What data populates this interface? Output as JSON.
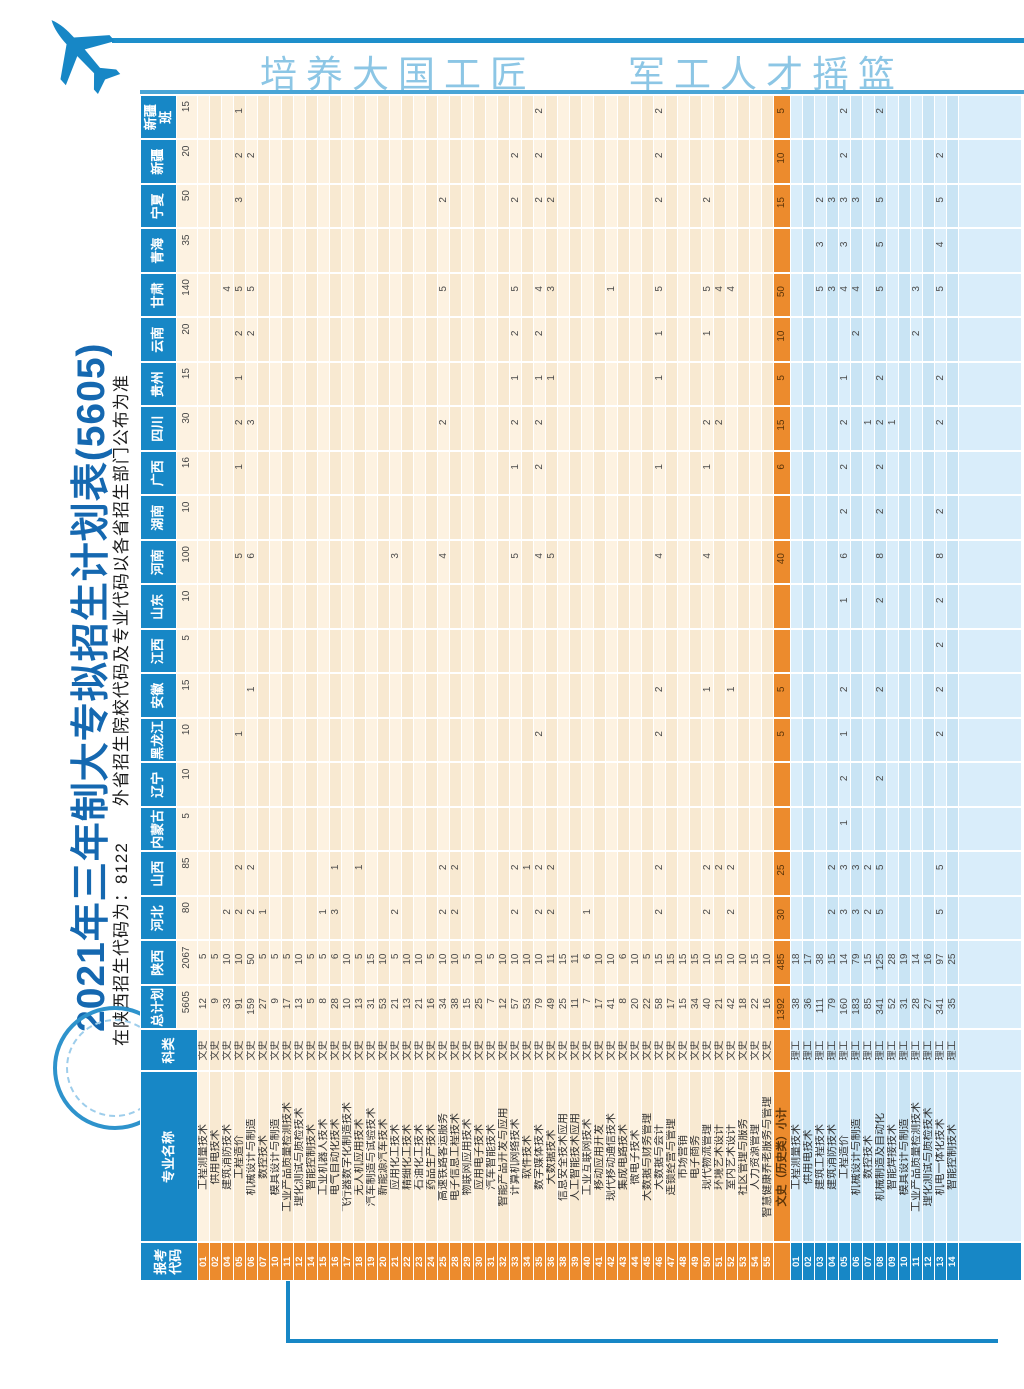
{
  "banner": {
    "slogan": "培养大国工匠　　军工人才摇篮"
  },
  "title": {
    "main": "2021年三年制大专拟招生计划表(5605)",
    "subtitle": "在陕西招生代码为：8122　　外省招生院校代码及专业代码以各省招生部门公布为准"
  },
  "icons": {
    "plane": "plane-logo",
    "seal": "school-seal"
  },
  "table": {
    "first_headers": [
      "报考\n代码",
      "专业名称",
      "科类"
    ],
    "province_headers": [
      "总计划",
      "陕西",
      "河北",
      "山西",
      "内蒙古",
      "辽宁",
      "黑龙江",
      "安徽",
      "江西",
      "山东",
      "河南",
      "湖南",
      "广西",
      "四川",
      "贵州",
      "云南",
      "甘肃",
      "青海",
      "宁夏",
      "新疆",
      "新疆\n班"
    ],
    "province_totals": [
      "5605",
      "2067",
      "80",
      "85",
      "5",
      "10",
      "10",
      "15",
      "5",
      "10",
      "100",
      "10",
      "16",
      "30",
      "15",
      "20",
      "140",
      "35",
      "50",
      "20",
      "15"
    ],
    "rows": [
      {
        "sec": "w",
        "code": "01",
        "name": "工程测量技术",
        "cat": "文史",
        "v": {
          "0": 12,
          "1": 5
        }
      },
      {
        "sec": "w",
        "code": "02",
        "name": "供用电技术",
        "cat": "文史",
        "v": {
          "0": 9,
          "1": 5
        }
      },
      {
        "sec": "w",
        "code": "04",
        "name": "建筑消防技术",
        "cat": "文史",
        "v": {
          "0": 33,
          "1": 10,
          "2": 2,
          "16": 4
        }
      },
      {
        "sec": "w",
        "code": "05",
        "name": "工程造价",
        "cat": "文史",
        "v": {
          "0": 91,
          "1": 10,
          "2": 2,
          "3": 2,
          "6": 1,
          "10": 5,
          "12": 1,
          "13": 2,
          "14": 1,
          "15": 2,
          "16": 5,
          "18": 3,
          "19": 2,
          "20": 1
        }
      },
      {
        "sec": "w",
        "code": "06",
        "name": "机械设计与制造",
        "cat": "文史",
        "v": {
          "0": 159,
          "1": 50,
          "2": 2,
          "3": 2,
          "7": 1,
          "10": 6,
          "13": 3,
          "15": 2,
          "16": 5,
          "19": 2
        }
      },
      {
        "sec": "w",
        "code": "07",
        "name": "数控技术",
        "cat": "文史",
        "v": {
          "0": 27,
          "1": 5,
          "2": 1
        }
      },
      {
        "sec": "w",
        "code": "10",
        "name": "模具设计与制造",
        "cat": "文史",
        "v": {
          "0": 9,
          "1": 5
        }
      },
      {
        "sec": "w",
        "code": "11",
        "name": "工业产品质量检测技术",
        "cat": "文史",
        "v": {
          "0": 17,
          "1": 5
        }
      },
      {
        "sec": "w",
        "code": "12",
        "name": "理化测试与质检技术",
        "cat": "文史",
        "v": {
          "0": 13,
          "1": 10
        }
      },
      {
        "sec": "w",
        "code": "14",
        "name": "智能控制技术",
        "cat": "文史",
        "v": {
          "0": 5,
          "1": 5
        }
      },
      {
        "sec": "w",
        "code": "15",
        "name": "工业机器人技术",
        "cat": "文史",
        "v": {
          "0": 8,
          "1": 5,
          "2": 1
        }
      },
      {
        "sec": "w",
        "code": "16",
        "name": "电气自动化技术",
        "cat": "文史",
        "v": {
          "0": 28,
          "1": 6,
          "2": 3,
          "3": 1
        }
      },
      {
        "sec": "w",
        "code": "17",
        "name": "飞行器数字化制造技术",
        "cat": "文史",
        "v": {
          "0": 10,
          "1": 10
        }
      },
      {
        "sec": "w",
        "code": "18",
        "name": "无人机应用技术",
        "cat": "文史",
        "v": {
          "0": 13,
          "1": 5,
          "3": 1
        }
      },
      {
        "sec": "w",
        "code": "19",
        "name": "汽车制造与试验技术",
        "cat": "文史",
        "v": {
          "0": 31,
          "1": 15
        }
      },
      {
        "sec": "w",
        "code": "20",
        "name": "新能源汽车技术",
        "cat": "文史",
        "v": {
          "0": 53,
          "1": 10
        }
      },
      {
        "sec": "w",
        "code": "21",
        "name": "应用化工技术",
        "cat": "文史",
        "v": {
          "0": 21,
          "1": 5,
          "2": 2,
          "10": 3
        }
      },
      {
        "sec": "w",
        "code": "22",
        "name": "精细化工技术",
        "cat": "文史",
        "v": {
          "0": 13,
          "1": 10
        }
      },
      {
        "sec": "w",
        "code": "23",
        "name": "石油化工技术",
        "cat": "文史",
        "v": {
          "0": 21,
          "1": 10
        }
      },
      {
        "sec": "w",
        "code": "24",
        "name": "药品生产技术",
        "cat": "文史",
        "v": {
          "0": 16,
          "1": 5
        }
      },
      {
        "sec": "w",
        "code": "25",
        "name": "高速铁路客运服务",
        "cat": "文史",
        "v": {
          "0": 34,
          "1": 10,
          "2": 2,
          "3": 2,
          "10": 4,
          "13": 2,
          "16": 5,
          "18": 2
        }
      },
      {
        "sec": "w",
        "code": "28",
        "name": "电子信息工程技术",
        "cat": "文史",
        "v": {
          "0": 38,
          "1": 10,
          "2": 2,
          "3": 2
        }
      },
      {
        "sec": "w",
        "code": "29",
        "name": "物联网应用技术",
        "cat": "文史",
        "v": {
          "0": 15,
          "1": 5
        }
      },
      {
        "sec": "w",
        "code": "30",
        "name": "应用电子技术",
        "cat": "文史",
        "v": {
          "0": 25,
          "1": 10
        }
      },
      {
        "sec": "w",
        "code": "31",
        "name": "汽车智能技术",
        "cat": "文史",
        "v": {
          "0": 7,
          "1": 5
        }
      },
      {
        "sec": "w",
        "code": "32",
        "name": "智能产品开发与应用",
        "cat": "文史",
        "v": {
          "0": 12,
          "1": 10
        }
      },
      {
        "sec": "w",
        "code": "33",
        "name": "计算机网络技术",
        "cat": "文史",
        "v": {
          "0": 57,
          "1": 10,
          "2": 2,
          "3": 2,
          "10": 5,
          "12": 1,
          "13": 2,
          "14": 1,
          "15": 2,
          "16": 5,
          "18": 2,
          "19": 2
        }
      },
      {
        "sec": "w",
        "code": "34",
        "name": "软件技术",
        "cat": "文史",
        "v": {
          "0": 53,
          "1": 10,
          "3": 1
        }
      },
      {
        "sec": "w",
        "code": "35",
        "name": "数字媒体技术",
        "cat": "文史",
        "v": {
          "0": 79,
          "1": 10,
          "2": 2,
          "3": 2,
          "6": 2,
          "10": 4,
          "12": 2,
          "13": 2,
          "14": 1,
          "15": 2,
          "16": 4,
          "18": 2,
          "19": 2,
          "20": 2
        }
      },
      {
        "sec": "w",
        "code": "36",
        "name": "大数据技术",
        "cat": "文史",
        "v": {
          "0": 49,
          "1": 11,
          "2": 2,
          "3": 2,
          "10": 5,
          "14": 1,
          "16": 3,
          "18": 2
        }
      },
      {
        "sec": "w",
        "code": "38",
        "name": "信息安全技术应用",
        "cat": "文史",
        "v": {
          "0": 25,
          "1": 15
        }
      },
      {
        "sec": "w",
        "code": "39",
        "name": "人工智能技术应用",
        "cat": "文史",
        "v": {
          "0": 11,
          "1": 11
        }
      },
      {
        "sec": "w",
        "code": "40",
        "name": "工业互联网技术",
        "cat": "文史",
        "v": {
          "0": 7,
          "1": 6,
          "2": 1
        }
      },
      {
        "sec": "w",
        "code": "41",
        "name": "移动应用开发",
        "cat": "文史",
        "v": {
          "0": 17,
          "1": 10
        }
      },
      {
        "sec": "w",
        "code": "42",
        "name": "现代移动通信技术",
        "cat": "文史",
        "v": {
          "0": 41,
          "1": 10,
          "16": 1
        }
      },
      {
        "sec": "w",
        "code": "43",
        "name": "集成电路技术",
        "cat": "文史",
        "v": {
          "0": 8,
          "1": 6
        }
      },
      {
        "sec": "w",
        "code": "44",
        "name": "微电子技术",
        "cat": "文史",
        "v": {
          "0": 20,
          "1": 10
        }
      },
      {
        "sec": "w",
        "code": "45",
        "name": "大数据与财务管理",
        "cat": "文史",
        "v": {
          "0": 22,
          "1": 5
        }
      },
      {
        "sec": "w",
        "code": "46",
        "name": "大数据与会计",
        "cat": "文史",
        "v": {
          "0": 58,
          "1": 15,
          "2": 2,
          "3": 2,
          "6": 2,
          "7": 2,
          "10": 4,
          "12": 1,
          "14": 1,
          "15": 1,
          "16": 5,
          "18": 2,
          "19": 2,
          "20": 2
        }
      },
      {
        "sec": "w",
        "code": "47",
        "name": "连锁经营与管理",
        "cat": "文史",
        "v": {
          "0": 17,
          "1": 15
        }
      },
      {
        "sec": "w",
        "code": "48",
        "name": "市场营销",
        "cat": "文史",
        "v": {
          "0": 15,
          "1": 15
        }
      },
      {
        "sec": "w",
        "code": "49",
        "name": "电子商务",
        "cat": "文史",
        "v": {
          "0": 34,
          "1": 15
        }
      },
      {
        "sec": "w",
        "code": "50",
        "name": "现代物流管理",
        "cat": "文史",
        "v": {
          "0": 40,
          "1": 10,
          "2": 2,
          "3": 2,
          "7": 1,
          "10": 4,
          "12": 1,
          "13": 2,
          "15": 1,
          "16": 5,
          "18": 2
        }
      },
      {
        "sec": "w",
        "code": "51",
        "name": "环境艺术设计",
        "cat": "文史",
        "v": {
          "0": 21,
          "1": 15,
          "3": 2,
          "13": 2,
          "16": 4
        }
      },
      {
        "sec": "w",
        "code": "52",
        "name": "室内艺术设计",
        "cat": "文史",
        "v": {
          "0": 42,
          "1": 10,
          "2": 2,
          "3": 2,
          "7": 1,
          "16": 4
        }
      },
      {
        "sec": "w",
        "code": "53",
        "name": "社区管理与服务",
        "cat": "文史",
        "v": {
          "0": 18,
          "1": 10
        }
      },
      {
        "sec": "w",
        "code": "54",
        "name": "人力资源管理",
        "cat": "文史",
        "v": {
          "0": 22,
          "1": 15
        }
      },
      {
        "sec": "w",
        "code": "55",
        "name": "智慧健康养老服务与管理",
        "cat": "文史",
        "v": {
          "0": 16,
          "1": 10
        }
      }
    ],
    "subtotal": {
      "name": "文史（历史类）小计",
      "v": {
        "0": 1392,
        "1": 485,
        "2": 30,
        "3": 25,
        "6": 5,
        "7": 5,
        "10": 40,
        "12": 6,
        "13": 15,
        "14": 5,
        "15": 10,
        "16": 50,
        "18": 15,
        "19": 10,
        "20": 5
      }
    },
    "rows_li": [
      {
        "sec": "l",
        "code": "01",
        "name": "工程测量技术",
        "cat": "理工",
        "v": {
          "0": 38,
          "1": 18
        }
      },
      {
        "sec": "l",
        "code": "02",
        "name": "供用电技术",
        "cat": "理工",
        "v": {
          "0": 36,
          "1": 17
        }
      },
      {
        "sec": "l",
        "code": "03",
        "name": "建筑工程技术",
        "cat": "理工",
        "v": {
          "0": 111,
          "1": 38,
          "16": 5,
          "17": 3,
          "18": 2
        }
      },
      {
        "sec": "l",
        "code": "04",
        "name": "建筑消防技术",
        "cat": "理工",
        "v": {
          "0": 79,
          "1": 15,
          "2": 2,
          "3": 2,
          "16": 3,
          "18": 3
        }
      },
      {
        "sec": "l",
        "code": "05",
        "name": "工程造价",
        "cat": "理工",
        "v": {
          "0": 160,
          "1": 14,
          "2": 3,
          "3": 3,
          "4": 1,
          "5": 2,
          "6": 1,
          "7": 2,
          "9": 1,
          "10": 6,
          "11": 2,
          "12": 2,
          "13": 2,
          "14": 1,
          "16": 4,
          "17": 3,
          "18": 3,
          "19": 2,
          "20": 2
        }
      },
      {
        "sec": "l",
        "code": "06",
        "name": "机械设计与制造",
        "cat": "理工",
        "v": {
          "0": 183,
          "1": 79,
          "2": 3,
          "3": 3,
          "15": 2,
          "16": 4,
          "18": 3
        }
      },
      {
        "sec": "l",
        "code": "07",
        "name": "数控技术",
        "cat": "理工",
        "v": {
          "0": 85,
          "1": 15,
          "2": 2,
          "3": 2,
          "13": 1
        }
      },
      {
        "sec": "l",
        "code": "08",
        "name": "机械制造及自动化",
        "cat": "理工",
        "v": {
          "0": 341,
          "1": 125,
          "2": 5,
          "3": 5,
          "5": 2,
          "7": 2,
          "9": 2,
          "10": 8,
          "11": 2,
          "12": 2,
          "13": 2,
          "14": 2,
          "16": 5,
          "17": 5,
          "18": 5,
          "20": 2
        }
      },
      {
        "sec": "l",
        "code": "09",
        "name": "智能焊接技术",
        "cat": "理工",
        "v": {
          "0": 52,
          "1": 28,
          "13": 1
        }
      },
      {
        "sec": "l",
        "code": "10",
        "name": "模具设计与制造",
        "cat": "理工",
        "v": {
          "0": 31,
          "1": 19
        }
      },
      {
        "sec": "l",
        "code": "11",
        "name": "工业产品质量检测技术",
        "cat": "理工",
        "v": {
          "0": 28,
          "1": 14,
          "15": 2,
          "16": 3
        }
      },
      {
        "sec": "l",
        "code": "12",
        "name": "理化测试与质检技术",
        "cat": "理工",
        "v": {
          "0": 27,
          "1": 16
        }
      },
      {
        "sec": "l",
        "code": "13",
        "name": "机电一体化技术",
        "cat": "理工",
        "v": {
          "0": 341,
          "1": 97,
          "2": 5,
          "3": 5,
          "6": 2,
          "7": 2,
          "8": 2,
          "9": 2,
          "10": 8,
          "11": 2,
          "13": 2,
          "14": 2,
          "16": 5,
          "17": 4,
          "18": 5,
          "19": 2
        }
      },
      {
        "sec": "l",
        "code": "14",
        "name": "智能控制技术",
        "cat": "理工",
        "v": {
          "0": 35,
          "1": 25
        }
      }
    ]
  }
}
